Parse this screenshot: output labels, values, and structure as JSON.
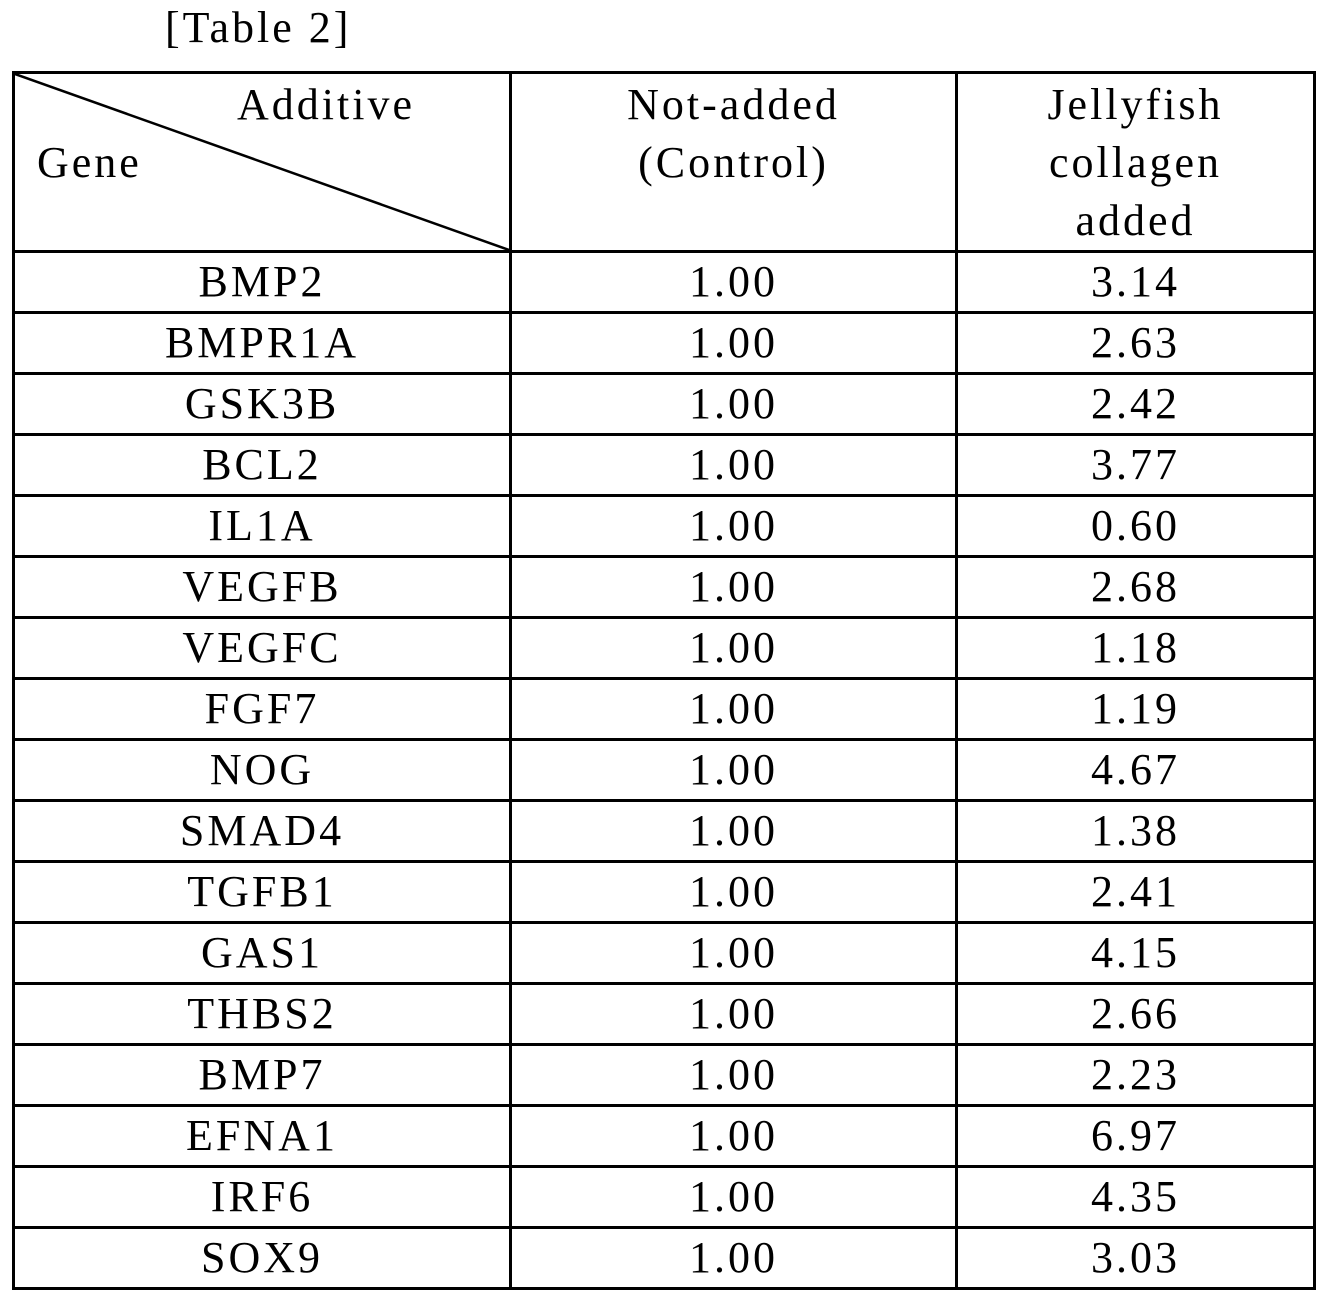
{
  "caption": "[Table 2]",
  "header": {
    "corner_top": "Additive",
    "corner_bottom": "Gene",
    "columns": [
      [
        "Not-added",
        "(Control)"
      ],
      [
        "Jellyfish",
        "collagen",
        "added"
      ]
    ]
  },
  "rows": [
    {
      "gene": "BMP2",
      "control": "1.00",
      "jellyfish": "3.14"
    },
    {
      "gene": "BMPR1A",
      "control": "1.00",
      "jellyfish": "2.63"
    },
    {
      "gene": "GSK3B",
      "control": "1.00",
      "jellyfish": "2.42"
    },
    {
      "gene": "BCL2",
      "control": "1.00",
      "jellyfish": "3.77"
    },
    {
      "gene": "IL1A",
      "control": "1.00",
      "jellyfish": "0.60"
    },
    {
      "gene": "VEGFB",
      "control": "1.00",
      "jellyfish": "2.68"
    },
    {
      "gene": "VEGFC",
      "control": "1.00",
      "jellyfish": "1.18"
    },
    {
      "gene": "FGF7",
      "control": "1.00",
      "jellyfish": "1.19"
    },
    {
      "gene": "NOG",
      "control": "1.00",
      "jellyfish": "4.67"
    },
    {
      "gene": "SMAD4",
      "control": "1.00",
      "jellyfish": "1.38"
    },
    {
      "gene": "TGFB1",
      "control": "1.00",
      "jellyfish": "2.41"
    },
    {
      "gene": "GAS1",
      "control": "1.00",
      "jellyfish": "4.15"
    },
    {
      "gene": "THBS2",
      "control": "1.00",
      "jellyfish": "2.66"
    },
    {
      "gene": "BMP7",
      "control": "1.00",
      "jellyfish": "2.23"
    },
    {
      "gene": "EFNA1",
      "control": "1.00",
      "jellyfish": "6.97"
    },
    {
      "gene": "IRF6",
      "control": "1.00",
      "jellyfish": "4.35"
    },
    {
      "gene": "SOX9",
      "control": "1.00",
      "jellyfish": "3.03"
    }
  ]
}
